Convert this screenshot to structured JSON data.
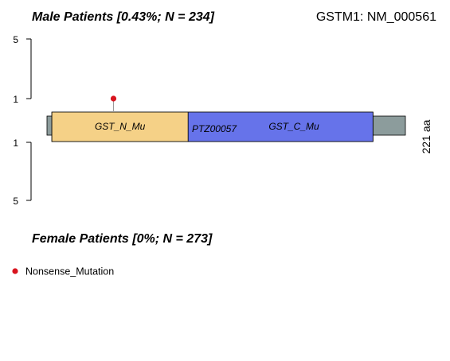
{
  "chart_data": {
    "type": "lollipop",
    "gene_label": "GSTM1: NM_000561",
    "top_panel_title": "Male Patients [0.43%; N = 234]",
    "bottom_panel_title": "Female Patients [0%; N = 273]",
    "protein_length_label": "221 aa",
    "protein_length": 221,
    "upper_axis_ticks": [
      "5",
      "1"
    ],
    "lower_axis_ticks": [
      "1",
      "5"
    ],
    "domains": [
      {
        "name": "GST_N_Mu",
        "start": 3,
        "end": 87,
        "color": "#f5d187"
      },
      {
        "name": "PTZ00057",
        "start": 3,
        "end": 201,
        "color": "#c8c8c8"
      },
      {
        "name": "GST_C_Mu",
        "start": 87,
        "end": 201,
        "color": "#6673ea"
      }
    ],
    "mutations": [
      {
        "panel": "male",
        "position": 41,
        "count": 1,
        "type": "Nonsense_Mutation",
        "color": "#d8141e"
      }
    ],
    "legend": [
      {
        "label": "Nonsense_Mutation",
        "color": "#d8141e"
      }
    ],
    "protein_color": "#8c9c9c"
  }
}
